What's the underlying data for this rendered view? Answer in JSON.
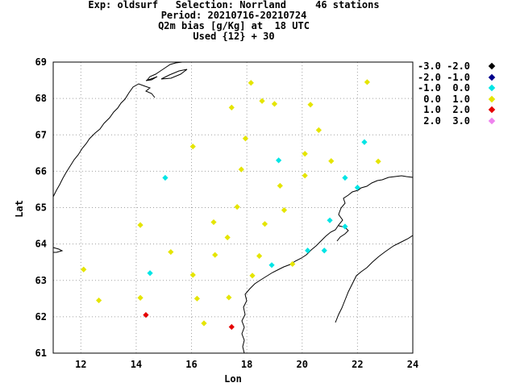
{
  "header": {
    "line1": "Exp: oldsurf   Selection: Norrland     46 stations",
    "line2": "Period: 20210716-20210724",
    "line3": "Q2m bias [g/Kg] at  18 UTC",
    "line4": "Used {12} + 30"
  },
  "legend": [
    {
      "label": "-3.0 -2.0",
      "color": "#000000"
    },
    {
      "label": "-2.0 -1.0",
      "color": "#00008b"
    },
    {
      "label": "-1.0  0.0",
      "color": "#00e5e5"
    },
    {
      "label": " 0.0  1.0",
      "color": "#e5e500"
    },
    {
      "label": " 1.0  2.0",
      "color": "#e50000"
    },
    {
      "label": " 2.0  3.0",
      "color": "#ee82ee"
    }
  ],
  "chart_data": {
    "type": "scatter",
    "xlabel": "Lon",
    "ylabel": "Lat",
    "xlim": [
      11,
      24
    ],
    "ylim": [
      61,
      69
    ],
    "xticks": [
      12,
      14,
      16,
      18,
      20,
      22,
      24
    ],
    "yticks": [
      61,
      62,
      63,
      64,
      65,
      66,
      67,
      68,
      69
    ],
    "grid": true,
    "legend_placement": "right",
    "stations": [
      {
        "lon": 18.15,
        "lat": 68.43,
        "bin": " 0.0  1.0"
      },
      {
        "lon": 22.35,
        "lat": 68.45,
        "bin": " 0.0  1.0"
      },
      {
        "lon": 18.55,
        "lat": 67.93,
        "bin": " 0.0  1.0"
      },
      {
        "lon": 19.0,
        "lat": 67.85,
        "bin": " 0.0  1.0"
      },
      {
        "lon": 17.45,
        "lat": 67.75,
        "bin": " 0.0  1.0"
      },
      {
        "lon": 20.3,
        "lat": 67.83,
        "bin": " 0.0  1.0"
      },
      {
        "lon": 20.6,
        "lat": 67.13,
        "bin": " 0.0  1.0"
      },
      {
        "lon": 17.95,
        "lat": 66.9,
        "bin": " 0.0  1.0"
      },
      {
        "lon": 22.25,
        "lat": 66.8,
        "bin": "-1.0  0.0"
      },
      {
        "lon": 16.05,
        "lat": 66.68,
        "bin": " 0.0  1.0"
      },
      {
        "lon": 20.1,
        "lat": 66.48,
        "bin": " 0.0  1.0"
      },
      {
        "lon": 19.15,
        "lat": 66.3,
        "bin": "-1.0  0.0"
      },
      {
        "lon": 21.05,
        "lat": 66.28,
        "bin": " 0.0  1.0"
      },
      {
        "lon": 22.75,
        "lat": 66.27,
        "bin": " 0.0  1.0"
      },
      {
        "lon": 17.8,
        "lat": 66.05,
        "bin": " 0.0  1.0"
      },
      {
        "lon": 20.1,
        "lat": 65.88,
        "bin": " 0.0  1.0"
      },
      {
        "lon": 15.05,
        "lat": 65.82,
        "bin": "-1.0  0.0"
      },
      {
        "lon": 21.55,
        "lat": 65.82,
        "bin": "-1.0  0.0"
      },
      {
        "lon": 19.2,
        "lat": 65.6,
        "bin": " 0.0  1.0"
      },
      {
        "lon": 22.0,
        "lat": 65.55,
        "bin": "-1.0  0.0"
      },
      {
        "lon": 17.65,
        "lat": 65.02,
        "bin": " 0.0  1.0"
      },
      {
        "lon": 19.35,
        "lat": 64.93,
        "bin": " 0.0  1.0"
      },
      {
        "lon": 21.0,
        "lat": 64.65,
        "bin": "-1.0  0.0"
      },
      {
        "lon": 16.8,
        "lat": 64.6,
        "bin": " 0.0  1.0"
      },
      {
        "lon": 14.15,
        "lat": 64.52,
        "bin": " 0.0  1.0"
      },
      {
        "lon": 18.65,
        "lat": 64.55,
        "bin": " 0.0  1.0"
      },
      {
        "lon": 21.55,
        "lat": 64.48,
        "bin": "-1.0  0.0"
      },
      {
        "lon": 17.3,
        "lat": 64.18,
        "bin": " 0.0  1.0"
      },
      {
        "lon": 20.2,
        "lat": 63.82,
        "bin": "-1.0  0.0"
      },
      {
        "lon": 20.8,
        "lat": 63.82,
        "bin": "-1.0  0.0"
      },
      {
        "lon": 15.25,
        "lat": 63.78,
        "bin": " 0.0  1.0"
      },
      {
        "lon": 16.85,
        "lat": 63.7,
        "bin": " 0.0  1.0"
      },
      {
        "lon": 18.45,
        "lat": 63.67,
        "bin": " 0.0  1.0"
      },
      {
        "lon": 19.65,
        "lat": 63.45,
        "bin": " 0.0  1.0"
      },
      {
        "lon": 18.9,
        "lat": 63.42,
        "bin": "-1.0  0.0"
      },
      {
        "lon": 12.1,
        "lat": 63.3,
        "bin": " 0.0  1.0"
      },
      {
        "lon": 14.5,
        "lat": 63.2,
        "bin": "-1.0  0.0"
      },
      {
        "lon": 16.05,
        "lat": 63.15,
        "bin": " 0.0  1.0"
      },
      {
        "lon": 18.2,
        "lat": 63.13,
        "bin": " 0.0  1.0"
      },
      {
        "lon": 14.15,
        "lat": 62.52,
        "bin": " 0.0  1.0"
      },
      {
        "lon": 16.2,
        "lat": 62.5,
        "bin": " 0.0  1.0"
      },
      {
        "lon": 17.35,
        "lat": 62.53,
        "bin": " 0.0  1.0"
      },
      {
        "lon": 12.65,
        "lat": 62.45,
        "bin": " 0.0  1.0"
      },
      {
        "lon": 14.35,
        "lat": 62.05,
        "bin": " 1.0  2.0"
      },
      {
        "lon": 16.45,
        "lat": 61.82,
        "bin": " 0.0  1.0"
      },
      {
        "lon": 17.45,
        "lat": 61.72,
        "bin": " 1.0  2.0"
      }
    ]
  }
}
